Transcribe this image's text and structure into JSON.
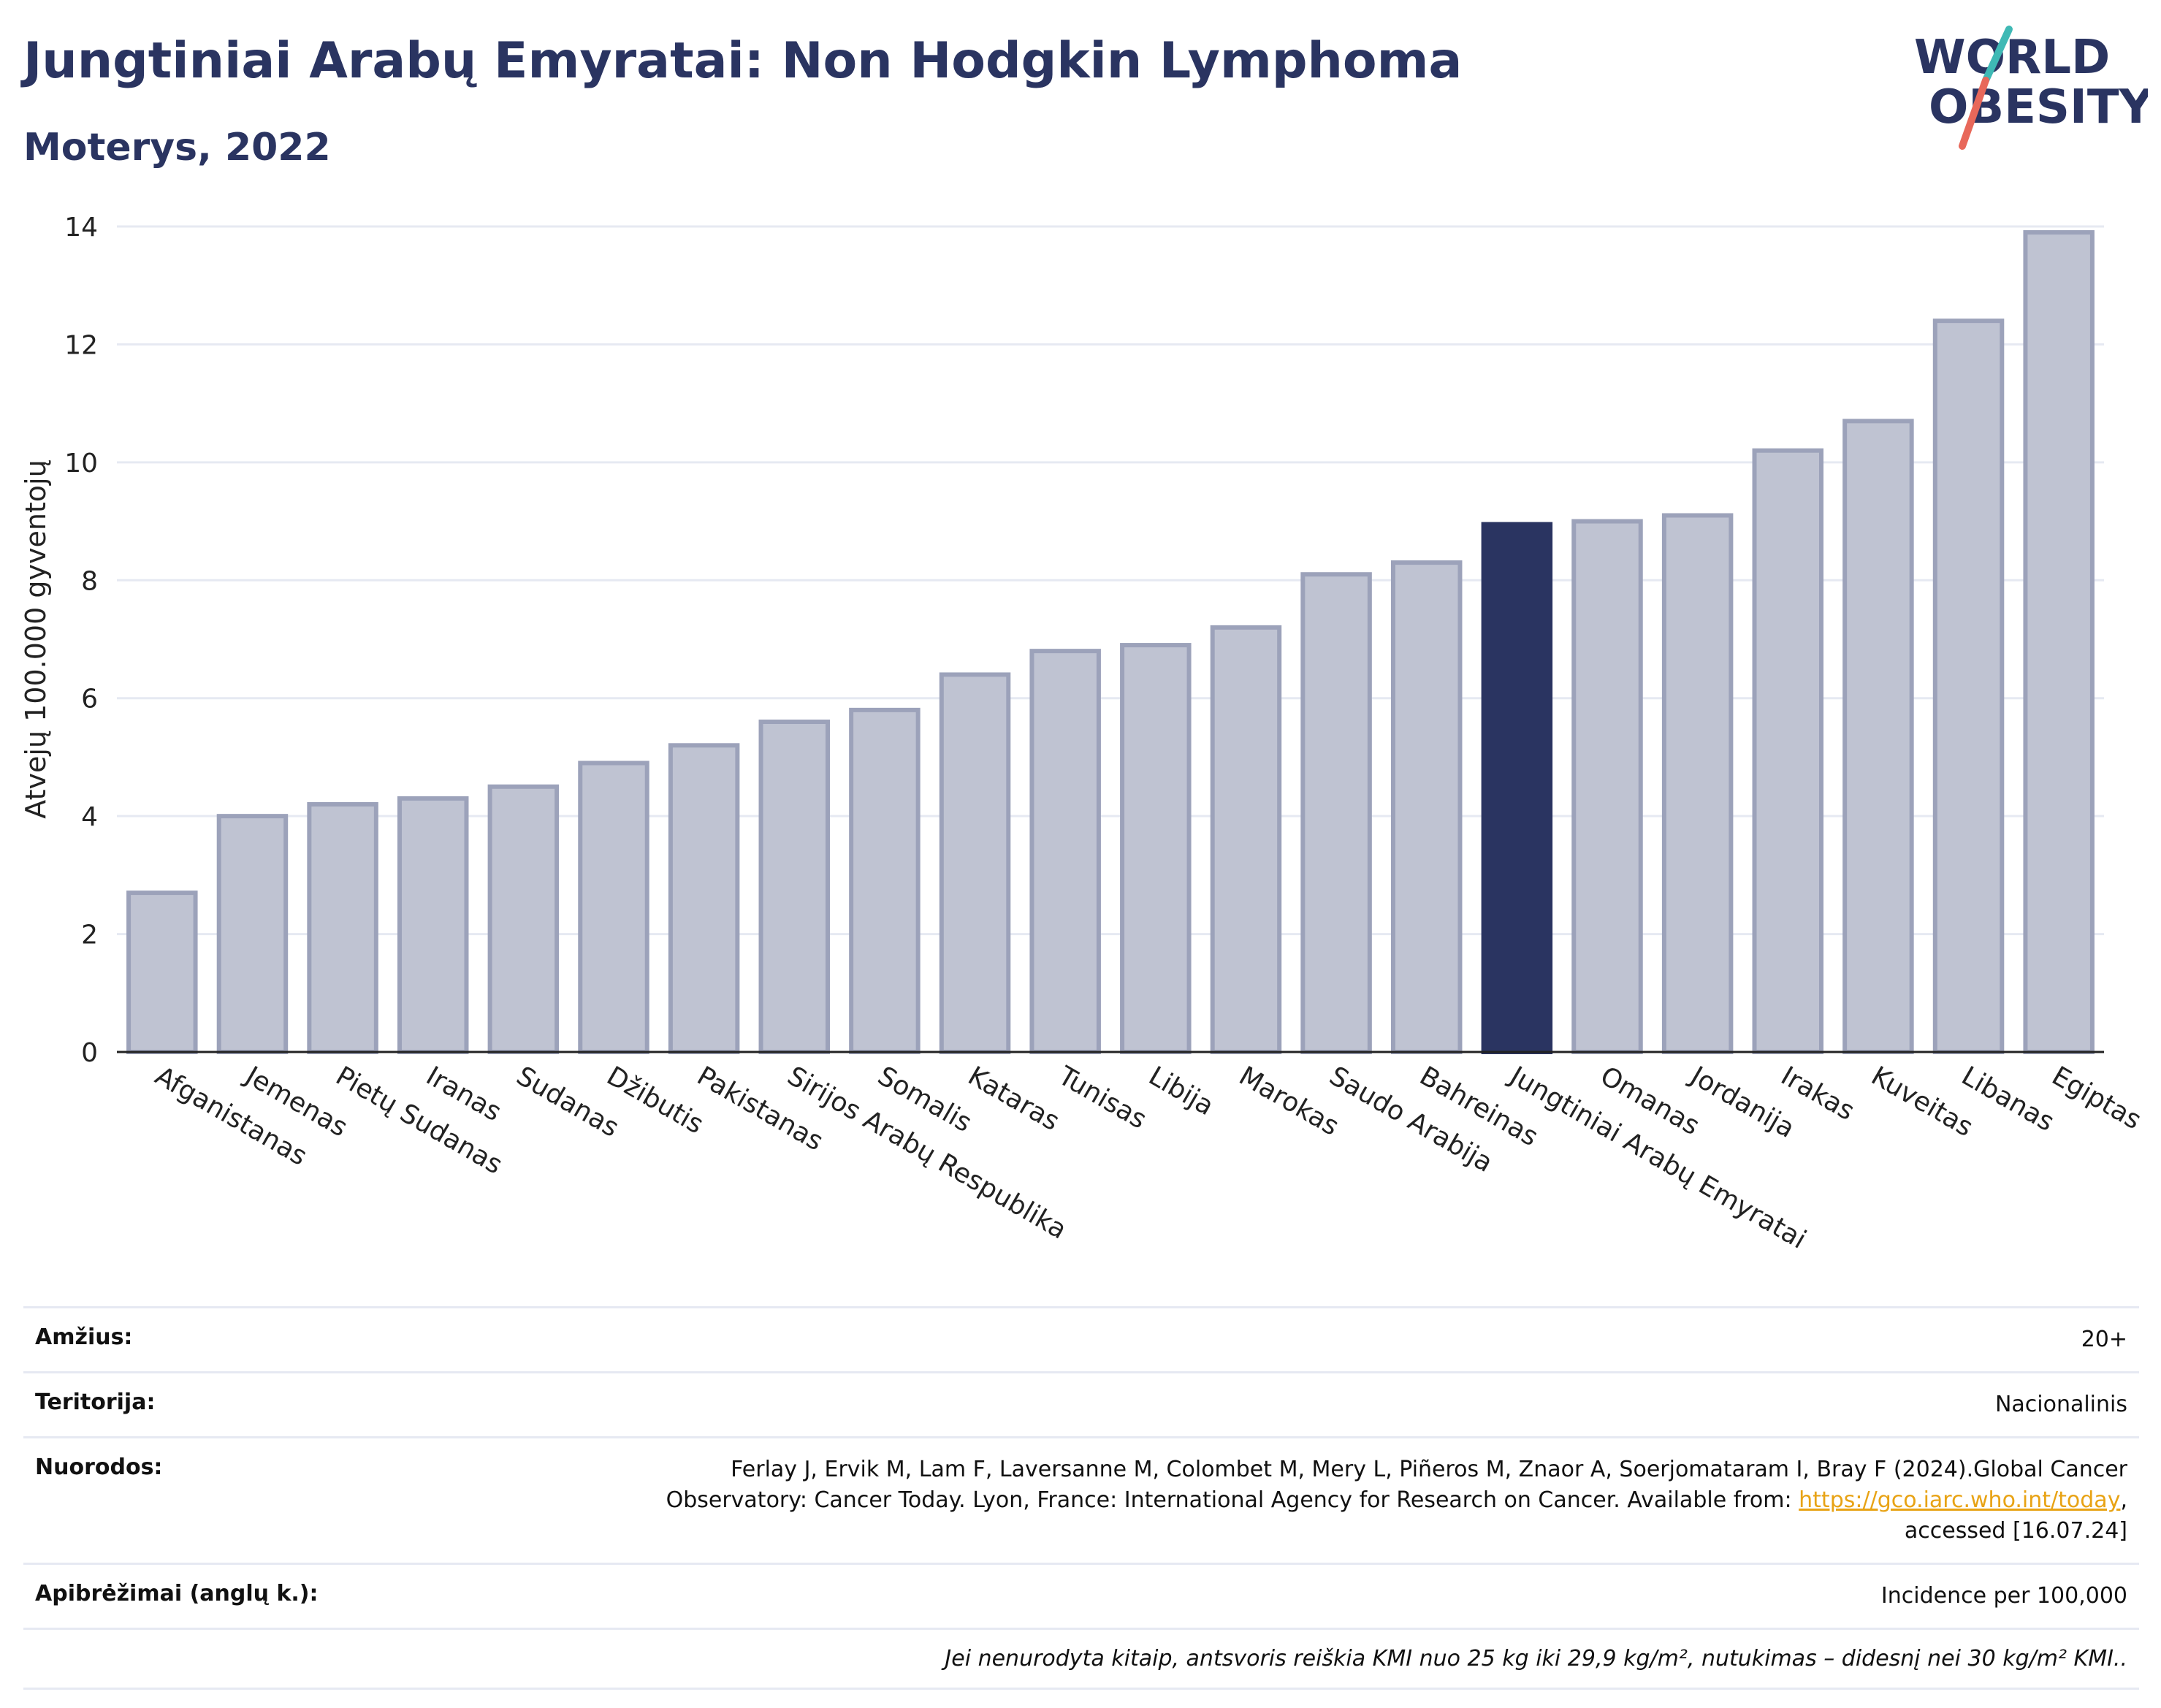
{
  "header": {
    "title": "Jungtiniai Arabų Emyratai: Non Hodgkin Lymphoma",
    "subtitle": "Moterys, 2022"
  },
  "logo": {
    "line1": "WORLD",
    "line2": "OBESITY"
  },
  "colors": {
    "highlight": "#2a3461",
    "bar_fill": "#bfc3d2",
    "bar_stroke": "#9ca2ba",
    "grid": "#e6e9f2"
  },
  "chart_data": {
    "type": "bar",
    "ylabel": "Atvejų 100.000 gyventojų",
    "ylim": [
      0,
      14
    ],
    "yticks": [
      0,
      2,
      4,
      6,
      8,
      10,
      12,
      14
    ],
    "grid": true,
    "highlight_category": "Jungtiniai Arabų Emyratai",
    "categories": [
      "Afganistanas",
      "Jemenas",
      "Pietų Sudanas",
      "Iranas",
      "Sudanas",
      "Džibutis",
      "Pakistanas",
      "Sirijos Arabų Respublika",
      "Somalis",
      "Kataras",
      "Tunisas",
      "Libija",
      "Marokas",
      "Saudo Arabija",
      "Bahreinas",
      "Jungtiniai Arabų Emyratai",
      "Omanas",
      "Jordanija",
      "Irakas",
      "Kuveitas",
      "Libanas",
      "Egiptas"
    ],
    "values": [
      2.7,
      4.0,
      4.2,
      4.3,
      4.5,
      4.9,
      5.2,
      5.6,
      5.8,
      6.4,
      6.8,
      6.9,
      7.2,
      8.1,
      8.3,
      8.95,
      9.0,
      9.1,
      10.2,
      10.7,
      12.4,
      13.9
    ]
  },
  "info": {
    "age_label": "Amžius:",
    "age_value": "20+",
    "territory_label": "Teritorija:",
    "territory_value": "Nacionalinis",
    "refs_label": "Nuorodos:",
    "refs_text_1": "Ferlay J, Ervik M, Lam F, Laversanne M, Colombet M, Mery L, Piñeros M, Znaor A, Soerjomataram I, Bray F (2024).Global Cancer Observatory: Cancer Today. Lyon, France: International Agency for Research on Cancer. Available from: ",
    "refs_link": "https://gco.iarc.who.int/today",
    "refs_text_2": ", accessed [16.07.24]",
    "defs_label": "Apibrėžimai (anglų k.):",
    "defs_value": "Incidence per 100,000",
    "note": "Jei nenurodyta kitaip, antsvoris reiškia KMI nuo 25 kg iki 29,9 kg/m², nutukimas – didesnį nei 30 kg/m² KMI.."
  }
}
